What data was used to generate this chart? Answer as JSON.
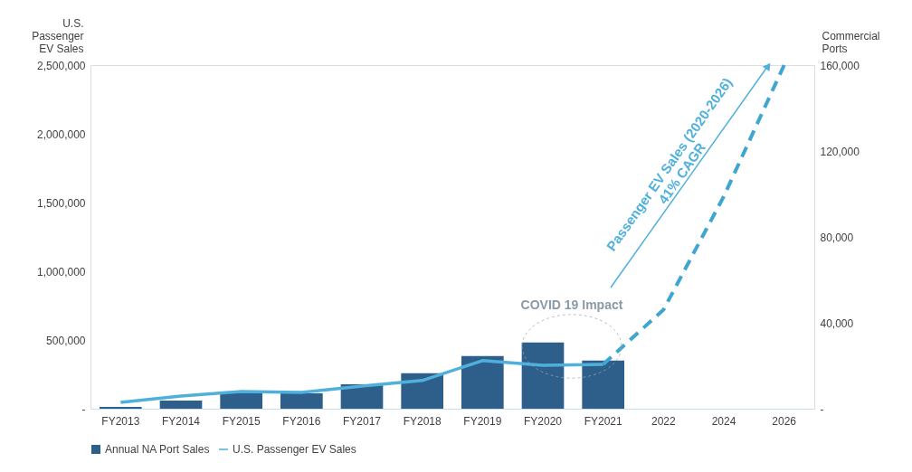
{
  "chart_data": {
    "type": "bar",
    "ylabel": "U.S. Passenger EV Sales",
    "y2label": "Commercial Ports",
    "categories": [
      "FY2013",
      "FY2014",
      "FY2015",
      "FY2016",
      "FY2017",
      "FY2018",
      "FY2019",
      "FY2020",
      "FY2021",
      "2022",
      "2024",
      "2026"
    ],
    "series": [
      {
        "name": "Annual NA Port Sales",
        "axis": "y2",
        "color": "#2d5f8a",
        "values": [
          800,
          3800,
          7600,
          7200,
          11400,
          16500,
          24500,
          30800,
          22400,
          null,
          null,
          null
        ]
      },
      {
        "name": "U.S. Passenger EV Sales",
        "type": "line",
        "axis": "y",
        "color": "#4fb0dc",
        "line_style": "solid",
        "values": [
          46000,
          92000,
          125000,
          118000,
          165000,
          205000,
          350000,
          316000,
          323000,
          null,
          null,
          null
        ]
      },
      {
        "type": "line",
        "axis": "y",
        "color": "#3fa6d0",
        "line_style": "dashed",
        "values": [
          null,
          null,
          null,
          null,
          null,
          null,
          null,
          null,
          323000,
          720000,
          1545000,
          2500000
        ]
      }
    ],
    "ylim": [
      0,
      2500000
    ],
    "yticks": [
      {
        "value": 0,
        "label": "-"
      },
      {
        "value": 500000,
        "label": "500,000"
      },
      {
        "value": 1000000,
        "label": "1,000,000"
      },
      {
        "value": 1500000,
        "label": "1,500,000"
      },
      {
        "value": 2000000,
        "label": "2,000,000"
      },
      {
        "value": 2500000,
        "label": "2,500,000"
      }
    ],
    "y2lim": [
      0,
      160000
    ],
    "y2ticks": [
      {
        "value": 0,
        "label": "-"
      },
      {
        "value": 40000,
        "label": "40,000"
      },
      {
        "value": 80000,
        "label": "80,000"
      },
      {
        "value": 120000,
        "label": "120,000"
      },
      {
        "value": 160000,
        "label": "160,000"
      }
    ],
    "annotations": [
      "COVID 19 Impact",
      "Passenger EV Sales (2020-2026)\n41% CAGR"
    ],
    "grid": false,
    "legend": "bottom"
  }
}
